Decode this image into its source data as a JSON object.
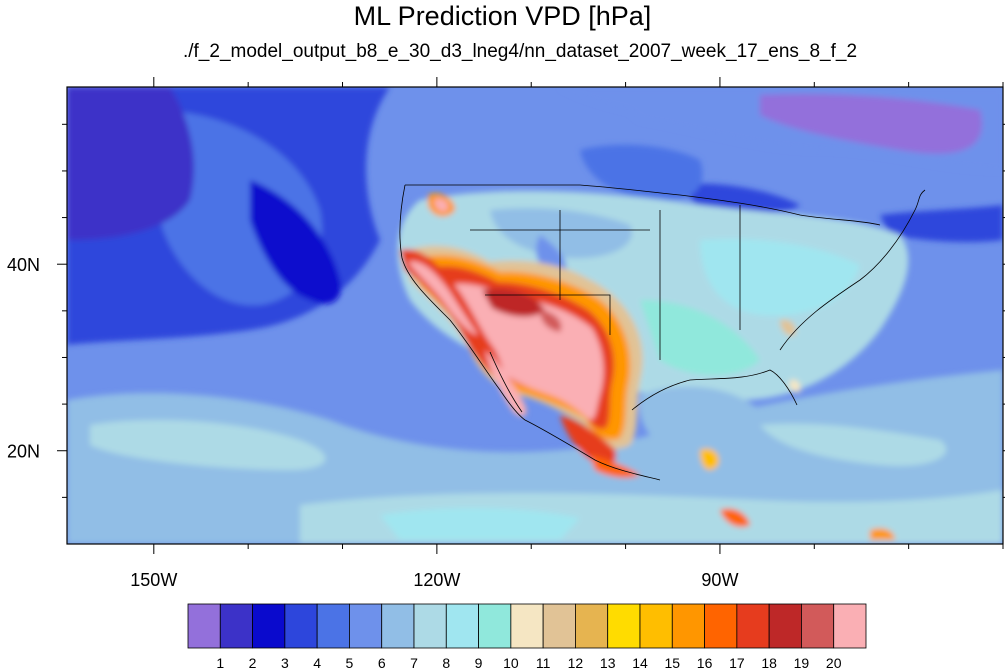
{
  "chart_data": {
    "type": "heatmap",
    "title": "ML Prediction VPD [hPa]",
    "subtitle": "./f_2_model_output_b8_e_30_d3_lneg4/nn_dataset_2007_week_17_ens_8_f_2",
    "x_axis": {
      "ticks": [
        {
          "value": -150,
          "label": "150W"
        },
        {
          "value": -120,
          "label": "120W"
        },
        {
          "value": -90,
          "label": "90W"
        }
      ],
      "range": [
        -159.2,
        -60
      ]
    },
    "y_axis": {
      "ticks": [
        {
          "value": 20,
          "label": "20N"
        },
        {
          "value": 40,
          "label": "40N"
        }
      ],
      "range": [
        10,
        59
      ]
    },
    "colorbar": {
      "levels": [
        "1",
        "2",
        "3",
        "4",
        "5",
        "6",
        "7",
        "8",
        "9",
        "10",
        "11",
        "12",
        "13",
        "14",
        "15",
        "16",
        "17",
        "18",
        "19",
        "20"
      ],
      "colors": [
        "#9370DB",
        "#3C32C8",
        "#0A0ACD",
        "#2D46DC",
        "#4B73E6",
        "#6E91EB",
        "#91BEE6",
        "#ADDAE6",
        "#A0E6F0",
        "#90E8DC",
        "#F5E6C3",
        "#E1C396",
        "#E6B450",
        "#FFDC00",
        "#FFBE00",
        "#FF9600",
        "#FF6400",
        "#E63C1E",
        "#BE2828",
        "#D25A5A",
        "#FAAFB4"
      ]
    }
  }
}
